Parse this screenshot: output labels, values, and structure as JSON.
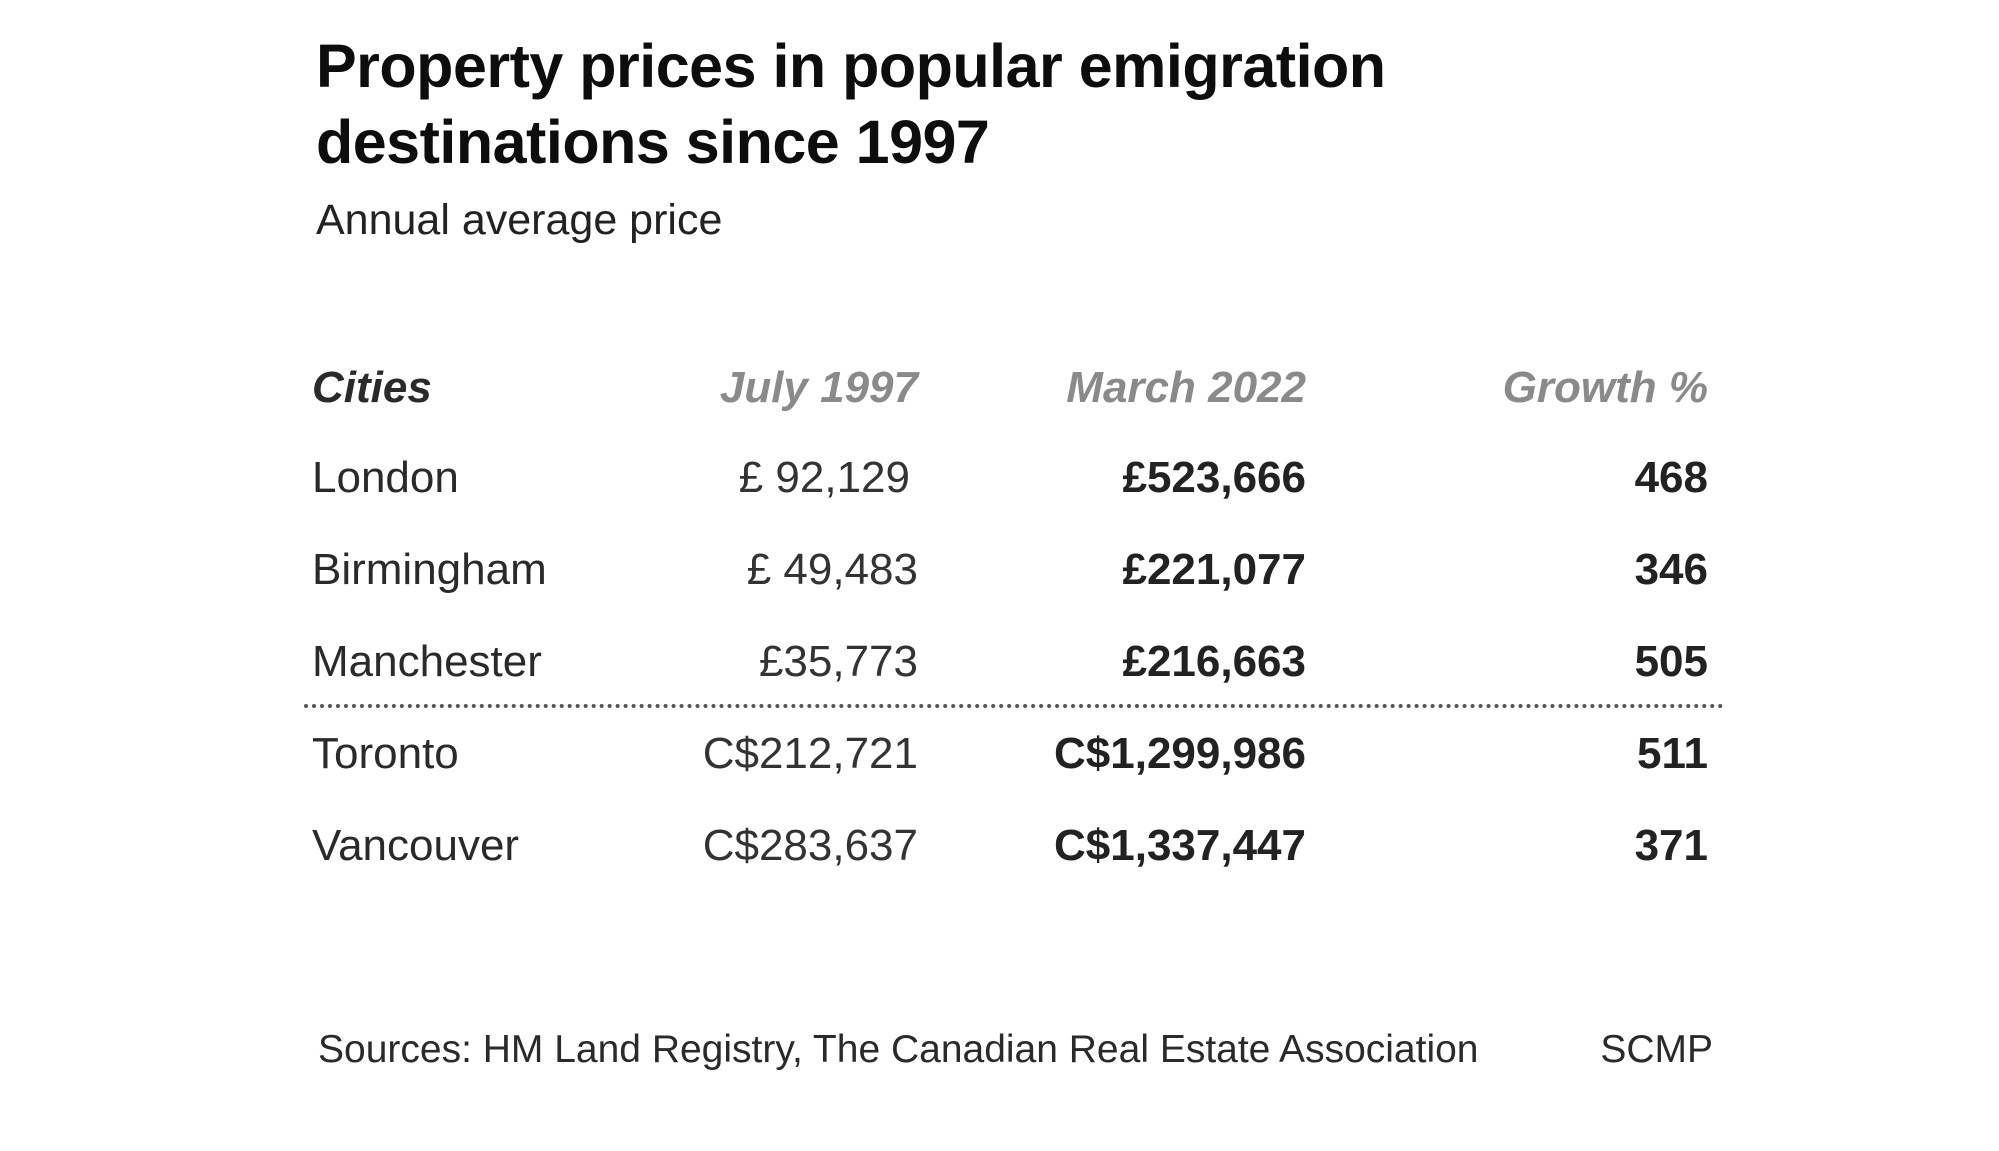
{
  "chart_data": {
    "type": "table",
    "title": "Property prices in popular emigration destinations since 1997",
    "subtitle": "Annual average price",
    "columns": [
      "Cities",
      "July 1997",
      "March 2022",
      "Growth %"
    ],
    "rows": [
      {
        "city": "London",
        "july_1997": "£ 92,129",
        "march_2022": "£523,666",
        "growth": "468"
      },
      {
        "city": "Birmingham",
        "july_1997": "£ 49,483",
        "march_2022": "£221,077",
        "growth": "346"
      },
      {
        "city": "Manchester",
        "july_1997": "£35,773",
        "march_2022": "£216,663",
        "growth": "505"
      },
      {
        "city": "Toronto",
        "july_1997": "C$212,721",
        "march_2022": "C$1,299,986",
        "growth": "511"
      },
      {
        "city": "Vancouver",
        "july_1997": "C$283,637",
        "march_2022": "C$1,337,447",
        "growth": "371"
      }
    ],
    "source": "Sources: HM Land Registry, The Canadian Real Estate Association",
    "credit": "SCMP"
  }
}
